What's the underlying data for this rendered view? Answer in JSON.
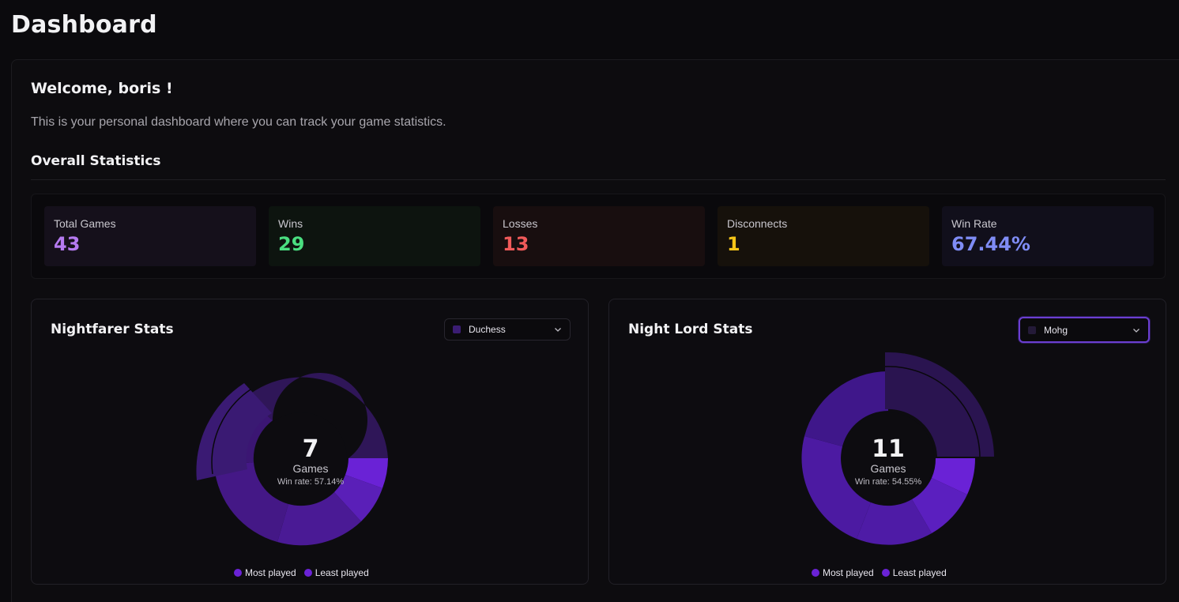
{
  "page": {
    "title": "Dashboard"
  },
  "welcome": {
    "heading": "Welcome, boris !",
    "description": "This is your personal dashboard where you can track your game statistics."
  },
  "overall": {
    "title": "Overall Statistics",
    "stats": [
      {
        "label": "Total Games",
        "value": "43",
        "color": "#b57af0",
        "bg": "#15101b"
      },
      {
        "label": "Wins",
        "value": "29",
        "color": "#4ade80",
        "bg": "#0d140f"
      },
      {
        "label": "Losses",
        "value": "13",
        "color": "#f05a5a",
        "bg": "#180e0f"
      },
      {
        "label": "Disconnects",
        "value": "1",
        "color": "#f5c518",
        "bg": "#16110b"
      },
      {
        "label": "Win Rate",
        "value": "67.44%",
        "color": "#7f8cf5",
        "bg": "#110f1b"
      }
    ]
  },
  "nightfarer": {
    "title": "Nightfarer Stats",
    "select": {
      "value": "Duchess",
      "swatch": "#3b1d73"
    },
    "center": {
      "count": "7",
      "label": "Games",
      "win_rate": "Win rate: 57.14%"
    },
    "legend": [
      {
        "label": "Most played",
        "color": "#6a22d6"
      },
      {
        "label": "Least played",
        "color": "#6a22d6"
      }
    ]
  },
  "nightlord": {
    "title": "Night Lord Stats",
    "select": {
      "value": "Mohg",
      "swatch": "#241a38"
    },
    "center": {
      "count": "11",
      "label": "Games",
      "win_rate": "Win rate: 54.55%"
    },
    "legend": [
      {
        "label": "Most played",
        "color": "#6a22d6"
      },
      {
        "label": "Least played",
        "color": "#6a22d6"
      }
    ]
  }
}
